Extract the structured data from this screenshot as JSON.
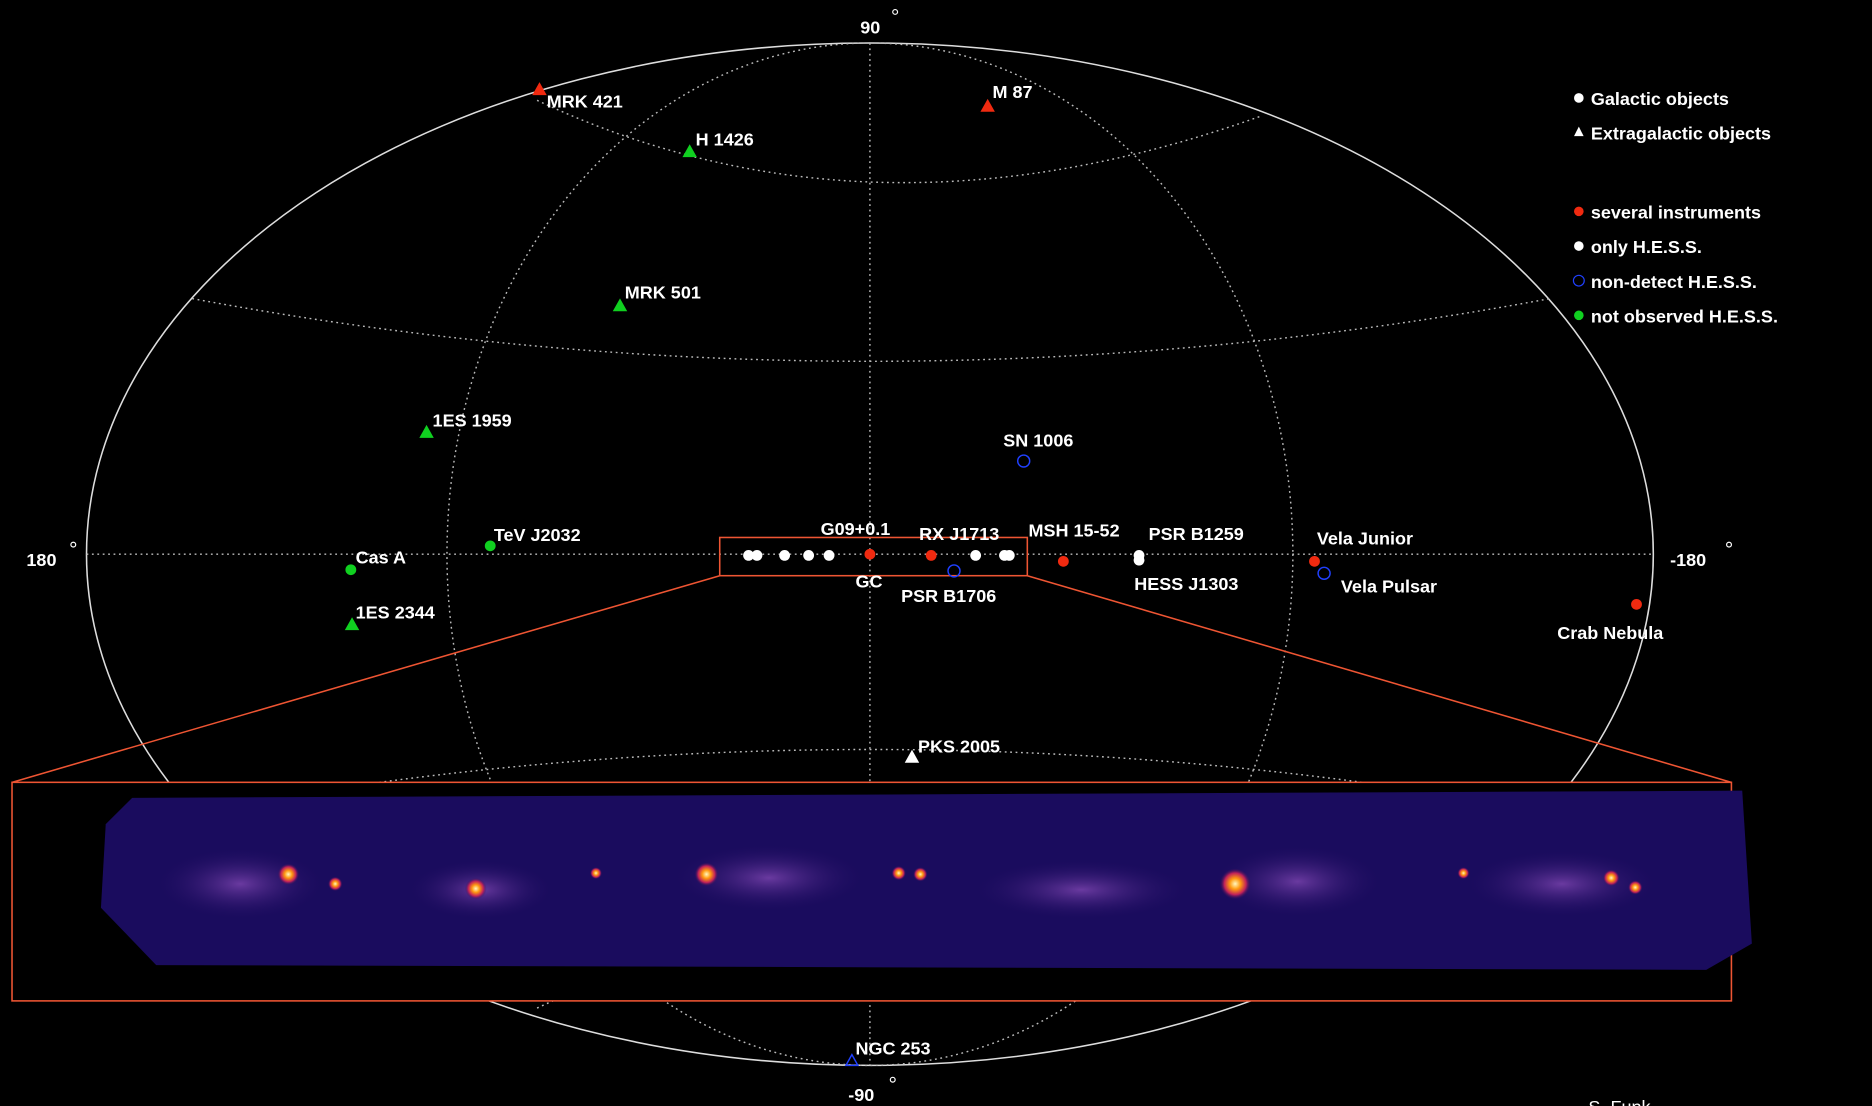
{
  "axis_labels": {
    "top": "90",
    "bottom": "-90",
    "left": "180",
    "right": "-180"
  },
  "sources": [
    {
      "label": "MRK 421"
    },
    {
      "label": "M 87"
    },
    {
      "label": "H 1426"
    },
    {
      "label": "MRK 501"
    },
    {
      "label": "1ES 1959"
    },
    {
      "label": "SN 1006"
    },
    {
      "label": "TeV J2032"
    },
    {
      "label": "Cas A"
    },
    {
      "label": "1ES 2344"
    },
    {
      "label": "G09+0.1"
    },
    {
      "label": "GC"
    },
    {
      "label": "RX J1713"
    },
    {
      "label": "PSR B1706"
    },
    {
      "label": "MSH 15-52"
    },
    {
      "label": "PSR B1259"
    },
    {
      "label": "HESS J1303"
    },
    {
      "label": "Vela Junior"
    },
    {
      "label": "Vela Pulsar"
    },
    {
      "label": "Crab Nebula"
    },
    {
      "label": "PKS 2005"
    },
    {
      "label": "NGC 253"
    }
  ],
  "legend": [
    {
      "label": "Galactic objects"
    },
    {
      "label": "Extragalactic objects"
    },
    {
      "label": "several instruments"
    },
    {
      "label": "only H.E.S.S."
    },
    {
      "label": "non-detect H.E.S.S."
    },
    {
      "label": "not observed H.E.S.S."
    }
  ],
  "credit": "S. Funk"
}
